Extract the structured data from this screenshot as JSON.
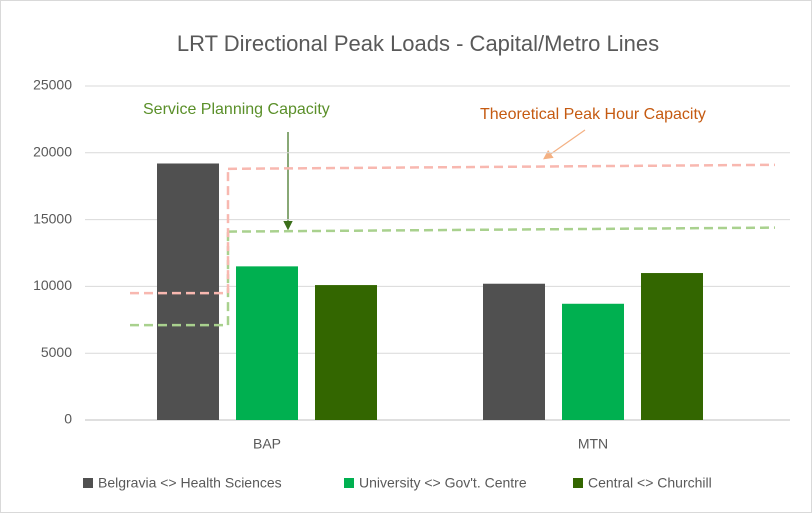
{
  "chart_data": {
    "type": "bar",
    "title": "LRT Directional Peak Loads - Capital/Metro Lines",
    "categories": [
      "BAP",
      "MTN"
    ],
    "series": [
      {
        "name": "Belgravia <> Health Sciences",
        "color": "#505050",
        "values": [
          19200,
          10200
        ]
      },
      {
        "name": "University <> Gov't. Centre",
        "color": "#00b050",
        "values": [
          11500,
          8700
        ]
      },
      {
        "name": "Central <> Churchill",
        "color": "#336600",
        "values": [
          10100,
          11000
        ]
      }
    ],
    "reference_lines": [
      {
        "name": "Service Planning Capacity",
        "color": "#a9d18e",
        "text_color": "#5a8f29",
        "values": [
          7100,
          14100,
          14400
        ]
      },
      {
        "name": "Theoretical Peak Hour Capacity",
        "color": "#f8b8b0",
        "text_color": "#c55a11",
        "values": [
          9500,
          18800,
          19100
        ]
      }
    ],
    "ylim": [
      0,
      25000
    ],
    "yticks": [
      0,
      5000,
      10000,
      15000,
      20000,
      25000
    ],
    "grid": true
  }
}
